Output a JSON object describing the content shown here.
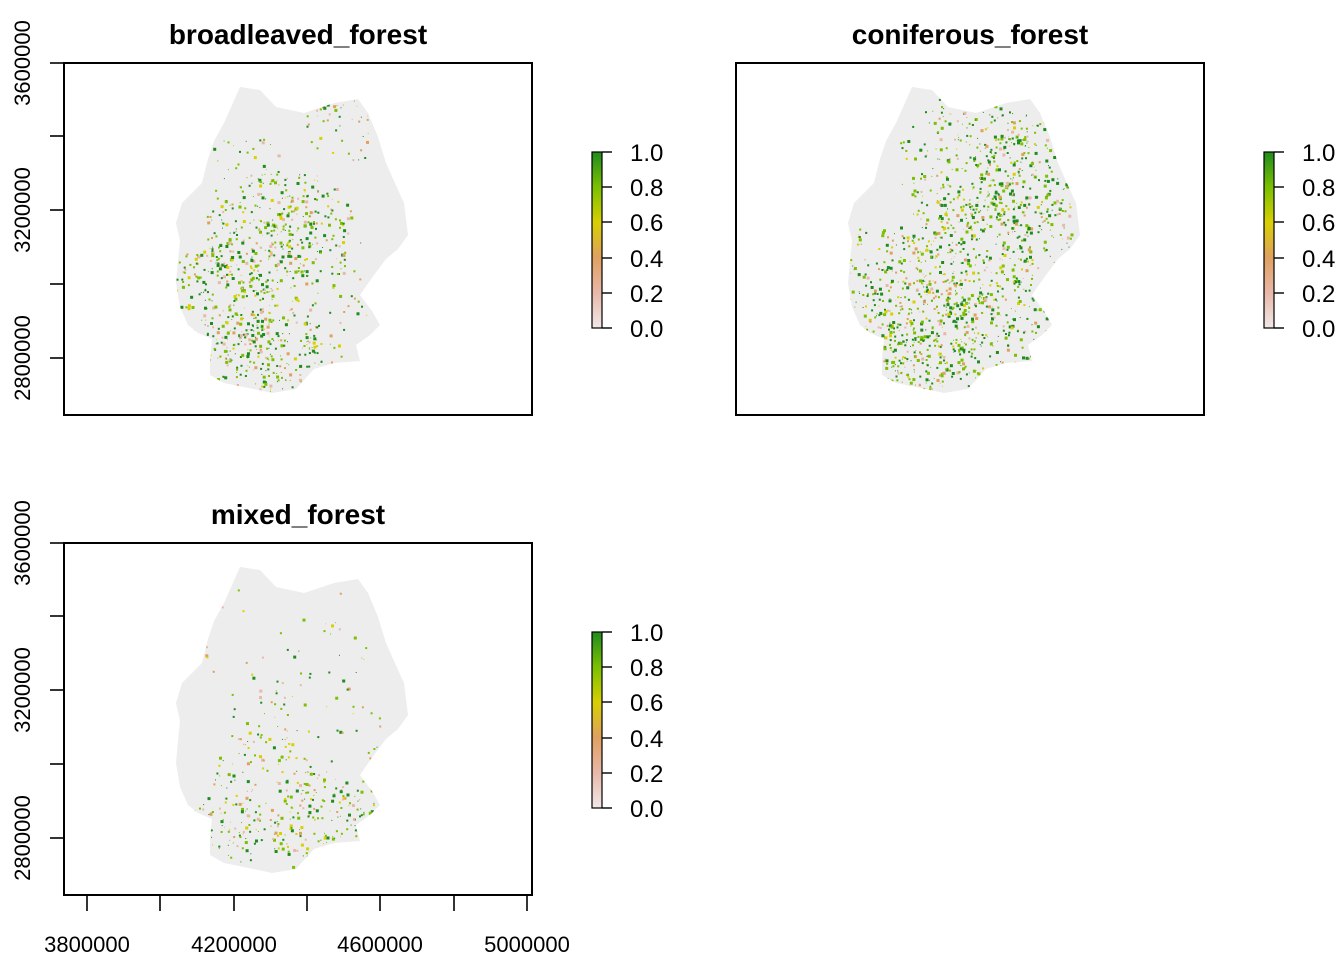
{
  "figure": {
    "panels": [
      {
        "id": "broadleaved",
        "title": "broadleaved_forest",
        "y_ticks": [
          "2800000",
          "3200000",
          "3600000"
        ],
        "show_x_axis": false,
        "legend_labels": [
          "1.0",
          "0.8",
          "0.6",
          "0.4",
          "0.2",
          "0.0"
        ]
      },
      {
        "id": "coniferous",
        "title": "coniferous_forest",
        "y_ticks": [],
        "show_x_axis": false,
        "legend_labels": [
          "1.0",
          "0.8",
          "0.6",
          "0.4",
          "0.2",
          "0.0"
        ]
      },
      {
        "id": "mixed",
        "title": "mixed_forest",
        "y_ticks": [
          "2800000",
          "3200000",
          "3600000"
        ],
        "show_x_axis": true,
        "x_ticks": [
          "3800000",
          "4200000",
          "4600000",
          "5000000"
        ],
        "legend_labels": [
          "1.0",
          "0.8",
          "0.6",
          "0.4",
          "0.2",
          "0.0"
        ]
      }
    ],
    "colors": {
      "no_forest": "#ededed",
      "scale": [
        "#ececec",
        "#e8b8a8",
        "#e0a060",
        "#d8d000",
        "#7cc000",
        "#1e8c1e"
      ]
    },
    "value_range": [
      0,
      1
    ]
  }
}
